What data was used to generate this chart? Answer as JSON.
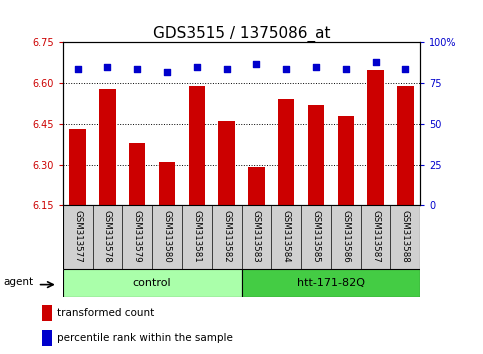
{
  "title": "GDS3515 / 1375086_at",
  "samples": [
    "GSM313577",
    "GSM313578",
    "GSM313579",
    "GSM313580",
    "GSM313581",
    "GSM313582",
    "GSM313583",
    "GSM313584",
    "GSM313585",
    "GSM313586",
    "GSM313587",
    "GSM313588"
  ],
  "bar_values": [
    6.43,
    6.58,
    6.38,
    6.31,
    6.59,
    6.46,
    6.29,
    6.54,
    6.52,
    6.48,
    6.65,
    6.59
  ],
  "percentile_values": [
    84,
    85,
    84,
    82,
    85,
    84,
    87,
    84,
    85,
    84,
    88,
    84
  ],
  "bar_color": "#cc0000",
  "dot_color": "#0000cc",
  "ylim_left": [
    6.15,
    6.75
  ],
  "ylim_right": [
    0,
    100
  ],
  "yticks_left": [
    6.15,
    6.3,
    6.45,
    6.6,
    6.75
  ],
  "yticks_right": [
    0,
    25,
    50,
    75,
    100
  ],
  "grid_lines": [
    6.3,
    6.45,
    6.6
  ],
  "agent_label": "agent",
  "group1_label": "control",
  "group2_label": "htt-171-82Q",
  "group1_count": 6,
  "group2_count": 6,
  "legend_bar": "transformed count",
  "legend_dot": "percentile rank within the sample",
  "title_fontsize": 11,
  "axis_tick_color_left": "#cc0000",
  "axis_tick_color_right": "#0000cc",
  "background_color": "#ffffff",
  "label_bg_color": "#d0d0d0",
  "group1_color": "#aaffaa",
  "group2_color": "#44cc44"
}
